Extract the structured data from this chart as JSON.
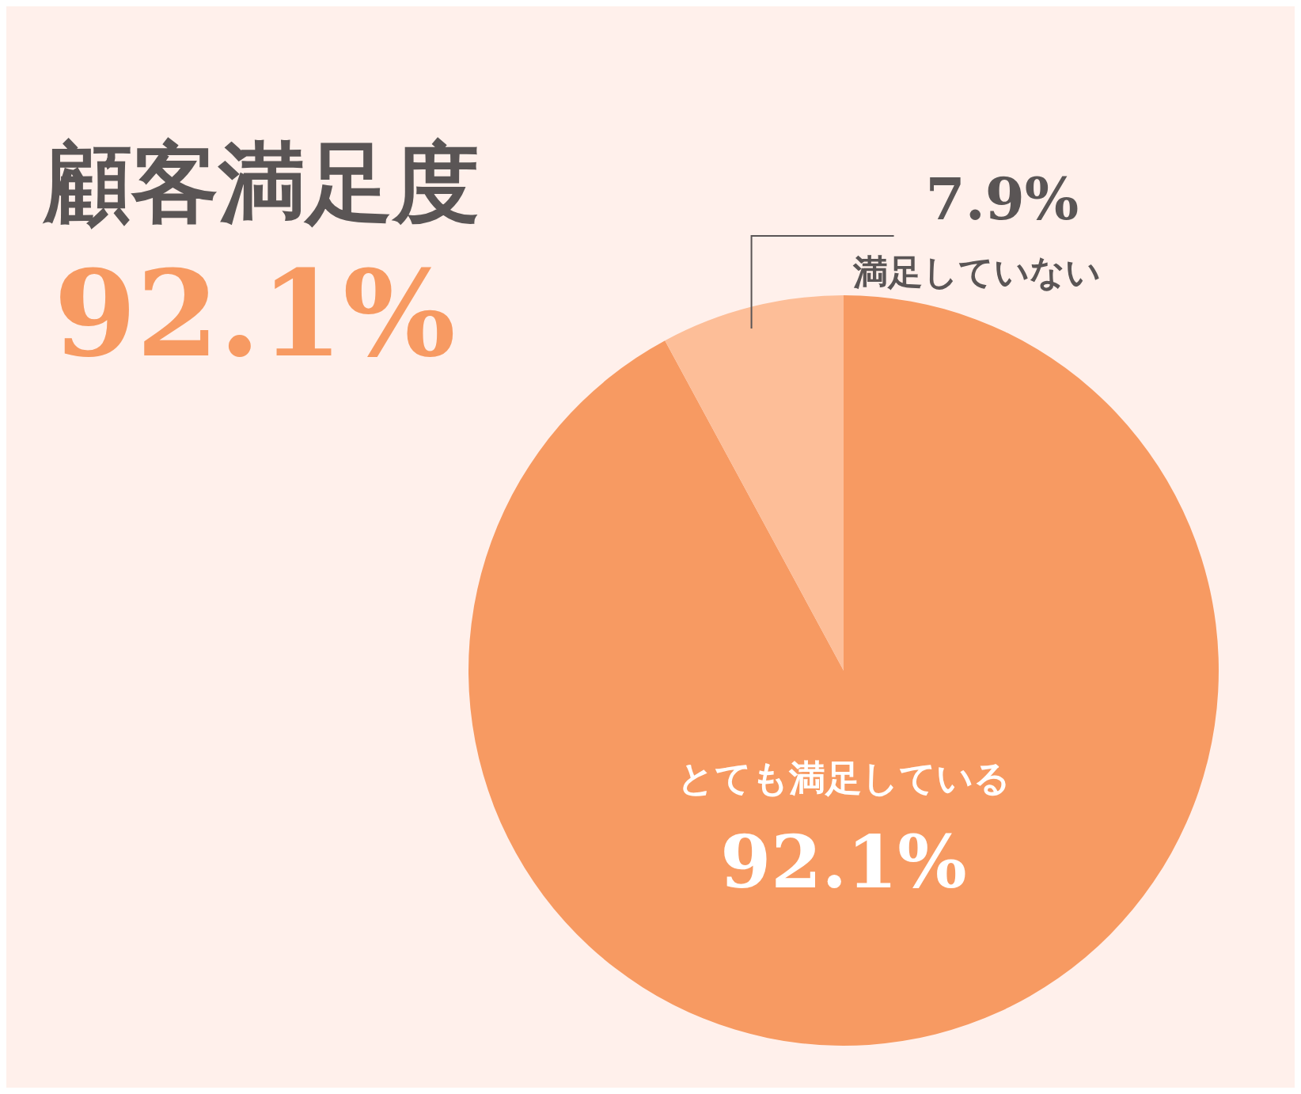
{
  "chart_data": {
    "type": "pie",
    "title": "顧客満足度",
    "subtitle": "92.1%",
    "categories": [
      "とても満足している",
      "満足していない"
    ],
    "values": [
      92.1,
      7.9
    ],
    "colors": [
      "#f79a62",
      "#fdbe98"
    ],
    "value_labels": [
      "92.1%",
      "7.9%"
    ]
  }
}
